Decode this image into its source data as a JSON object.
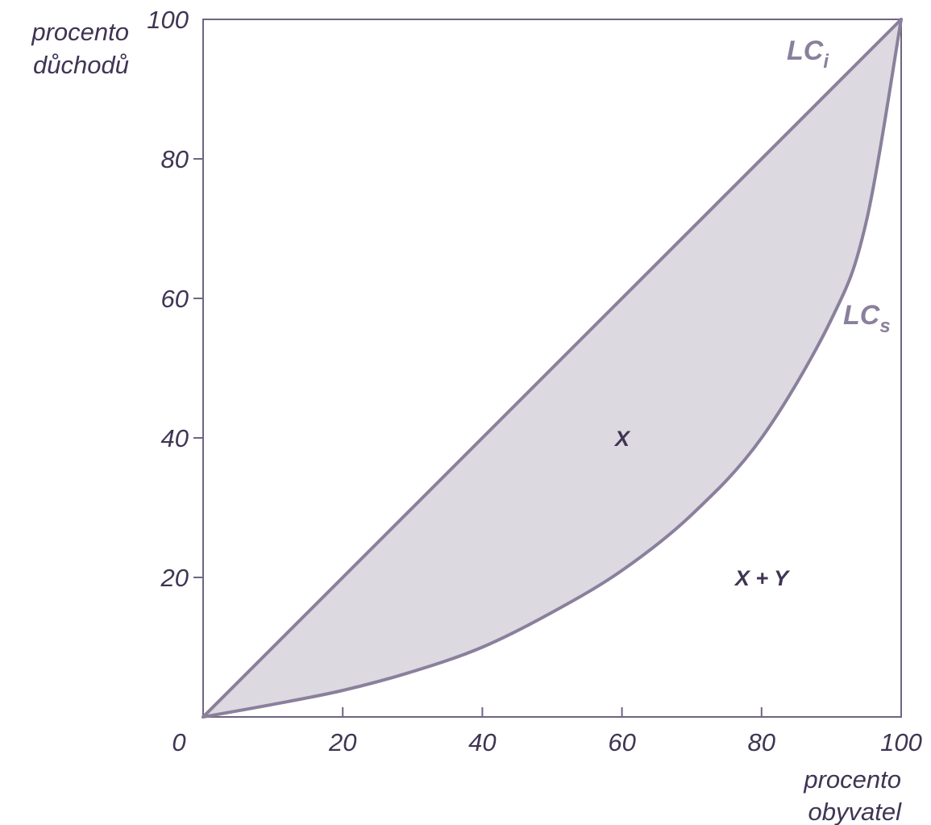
{
  "chart_data": {
    "type": "line",
    "xlabel_lines": [
      "procento",
      "obyvatel"
    ],
    "ylabel_lines": [
      "procento",
      "důchodů"
    ],
    "xlim": [
      0,
      100
    ],
    "ylim": [
      0,
      100
    ],
    "x_ticks": [
      {
        "value": 0,
        "label": "0"
      },
      {
        "value": 20,
        "label": "20"
      },
      {
        "value": 40,
        "label": "40"
      },
      {
        "value": 60,
        "label": "60"
      },
      {
        "value": 80,
        "label": "80"
      },
      {
        "value": 100,
        "label": "100"
      }
    ],
    "y_ticks": [
      {
        "value": 20,
        "label": "20"
      },
      {
        "value": 40,
        "label": "40"
      },
      {
        "value": 60,
        "label": "60"
      },
      {
        "value": 80,
        "label": "80"
      },
      {
        "value": 100,
        "label": "100"
      }
    ],
    "series": [
      {
        "name": "LCi",
        "label_main": "LC",
        "label_sub": "i",
        "x": [
          0,
          100
        ],
        "y": [
          0,
          100
        ]
      },
      {
        "name": "LCs",
        "label_main": "LC",
        "label_sub": "s",
        "x": [
          0,
          10,
          20,
          30,
          40,
          50,
          60,
          70,
          80,
          90,
          95,
          100
        ],
        "y": [
          0,
          1.8,
          3.8,
          6.5,
          10.0,
          15.0,
          21.0,
          29.0,
          40.0,
          57.0,
          71.0,
          100
        ]
      }
    ],
    "regions": [
      {
        "label": "X",
        "x": 60,
        "y": 40
      },
      {
        "label": "X + Y",
        "x": 81,
        "y": 20
      }
    ],
    "colors": {
      "line": "#8a809c",
      "frame": "#6e6582",
      "fill": "#dcd9e1",
      "text": "#3f3553"
    },
    "grid": false
  }
}
